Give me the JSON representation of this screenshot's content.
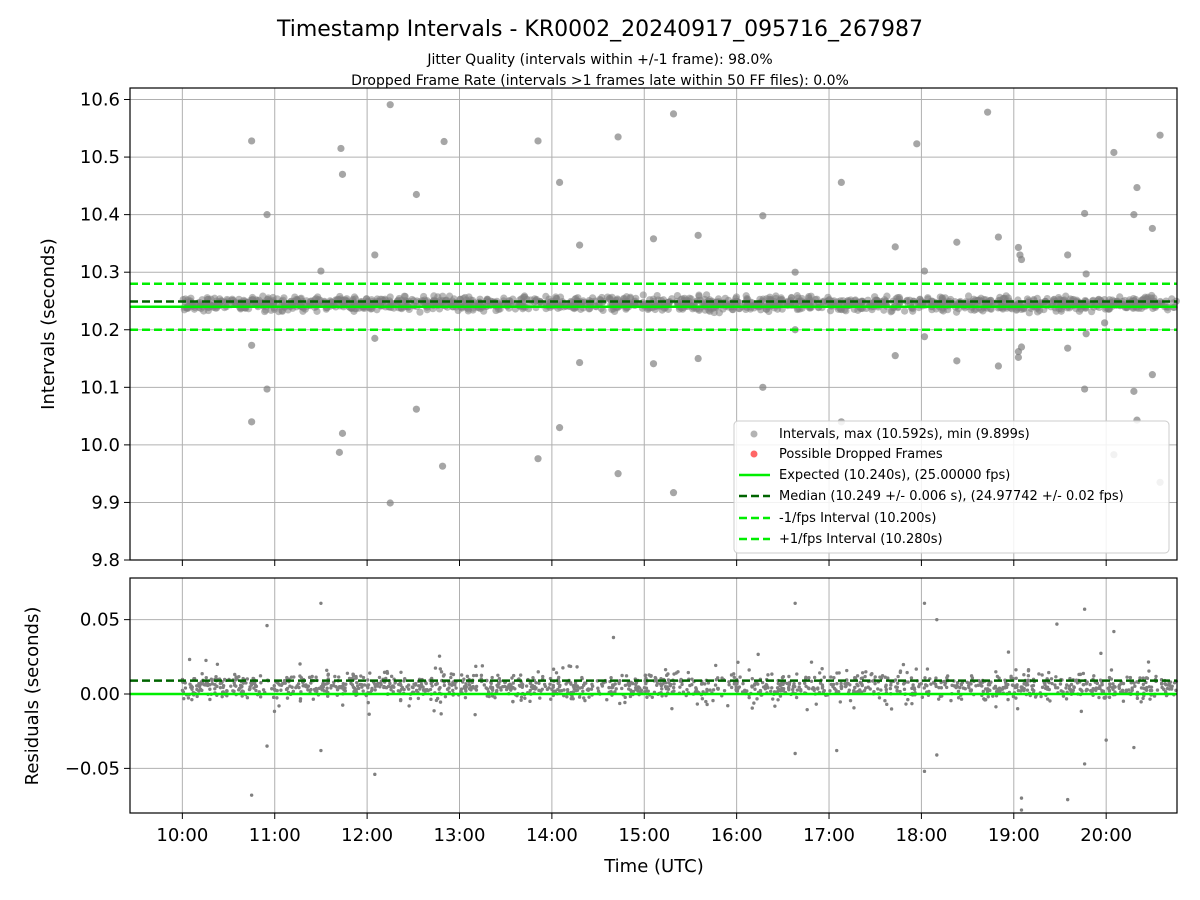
{
  "chart_data": [
    {
      "type": "scatter",
      "title": "Timestamp Intervals - KR0002_20240917_095716_267987",
      "subtitle_lines": [
        "Jitter Quality (intervals within +/-1 frame): 98.0%",
        "Dropped Frame Rate (intervals >1 frames late within 50 FF files): 0.0%"
      ],
      "ylabel": "Intervals (seconds)",
      "ylim": [
        9.8,
        10.62
      ],
      "yticks": [
        9.8,
        9.9,
        10.0,
        10.1,
        10.2,
        10.3,
        10.4,
        10.5,
        10.6
      ],
      "ytick_labels": [
        "9.8",
        "9.9",
        "10.0",
        "10.1",
        "10.2",
        "10.3",
        "10.4",
        "10.5",
        "10.6"
      ],
      "grid": true,
      "legend_position": "lower-right",
      "legend": [
        "Intervals, max (10.592s), min (9.899s)",
        "Possible Dropped Frames",
        "Expected (10.240s), (25.00000 fps)",
        "Median (10.249 +/- 0.006 s), (24.97742 +/- 0.02 fps)",
        "-1/fps Interval (10.200s)",
        "+1/fps Interval (10.280s)"
      ],
      "reference_lines": {
        "expected": 10.24,
        "median": 10.249,
        "minus_one_fps": 10.2,
        "plus_one_fps": 10.28
      },
      "baseline_band": {
        "center": 10.245,
        "spread": 0.018
      },
      "outliers": [
        {
          "x": "10:45",
          "y": 10.528
        },
        {
          "x": "10:45",
          "y": 10.173
        },
        {
          "x": "10:45",
          "y": 10.04
        },
        {
          "x": "10:55",
          "y": 10.4
        },
        {
          "x": "10:55",
          "y": 10.097
        },
        {
          "x": "11:30",
          "y": 10.302
        },
        {
          "x": "11:43",
          "y": 10.515
        },
        {
          "x": "11:44",
          "y": 10.47
        },
        {
          "x": "11:44",
          "y": 10.02
        },
        {
          "x": "11:42",
          "y": 9.987
        },
        {
          "x": "12:05",
          "y": 10.33
        },
        {
          "x": "12:05",
          "y": 10.185
        },
        {
          "x": "12:15",
          "y": 10.591
        },
        {
          "x": "12:15",
          "y": 9.899
        },
        {
          "x": "12:32",
          "y": 10.435
        },
        {
          "x": "12:32",
          "y": 10.062
        },
        {
          "x": "12:50",
          "y": 10.527
        },
        {
          "x": "12:49",
          "y": 9.963
        },
        {
          "x": "13:51",
          "y": 10.528
        },
        {
          "x": "13:51",
          "y": 9.976
        },
        {
          "x": "14:05",
          "y": 10.456
        },
        {
          "x": "14:05",
          "y": 10.03
        },
        {
          "x": "14:18",
          "y": 10.347
        },
        {
          "x": "14:18",
          "y": 10.143
        },
        {
          "x": "14:43",
          "y": 10.535
        },
        {
          "x": "14:43",
          "y": 9.95
        },
        {
          "x": "15:06",
          "y": 10.358
        },
        {
          "x": "15:06",
          "y": 10.141
        },
        {
          "x": "15:19",
          "y": 10.575
        },
        {
          "x": "15:19",
          "y": 9.917
        },
        {
          "x": "15:35",
          "y": 10.364
        },
        {
          "x": "15:35",
          "y": 10.15
        },
        {
          "x": "16:17",
          "y": 10.398
        },
        {
          "x": "16:17",
          "y": 10.1
        },
        {
          "x": "16:38",
          "y": 10.3
        },
        {
          "x": "16:38",
          "y": 10.2
        },
        {
          "x": "17:08",
          "y": 10.456
        },
        {
          "x": "17:08",
          "y": 10.04
        },
        {
          "x": "17:43",
          "y": 10.344
        },
        {
          "x": "17:43",
          "y": 10.155
        },
        {
          "x": "17:57",
          "y": 10.523
        },
        {
          "x": "18:02",
          "y": 10.302
        },
        {
          "x": "18:02",
          "y": 10.188
        },
        {
          "x": "18:23",
          "y": 10.352
        },
        {
          "x": "18:23",
          "y": 10.146
        },
        {
          "x": "18:43",
          "y": 10.578
        },
        {
          "x": "18:50",
          "y": 10.361
        },
        {
          "x": "18:50",
          "y": 10.137
        },
        {
          "x": "19:03",
          "y": 10.343
        },
        {
          "x": "19:04",
          "y": 10.33
        },
        {
          "x": "19:05",
          "y": 10.322
        },
        {
          "x": "19:03",
          "y": 10.162
        },
        {
          "x": "19:05",
          "y": 10.17
        },
        {
          "x": "19:03",
          "y": 10.152
        },
        {
          "x": "19:35",
          "y": 10.33
        },
        {
          "x": "19:35",
          "y": 10.168
        },
        {
          "x": "19:46",
          "y": 10.402
        },
        {
          "x": "19:47",
          "y": 10.297
        },
        {
          "x": "19:46",
          "y": 10.097
        },
        {
          "x": "19:47",
          "y": 10.193
        },
        {
          "x": "19:59",
          "y": 10.212
        },
        {
          "x": "20:05",
          "y": 10.508
        },
        {
          "x": "20:05",
          "y": 9.983
        },
        {
          "x": "20:18",
          "y": 10.4
        },
        {
          "x": "20:20",
          "y": 10.447
        },
        {
          "x": "20:18",
          "y": 10.093
        },
        {
          "x": "20:20",
          "y": 10.043
        },
        {
          "x": "20:30",
          "y": 10.376
        },
        {
          "x": "20:30",
          "y": 10.122
        },
        {
          "x": "20:35",
          "y": 10.538
        },
        {
          "x": "20:35",
          "y": 9.935
        }
      ]
    },
    {
      "type": "scatter",
      "ylabel": "Residuals (seconds)",
      "xlabel": "Time (UTC)",
      "ylim": [
        -0.08,
        0.078
      ],
      "yticks": [
        -0.05,
        0.0,
        0.05
      ],
      "ytick_labels": [
        "−0.05",
        "0.00",
        "0.05"
      ],
      "xlim": [
        "09:26",
        "20:46"
      ],
      "xticks": [
        "10:00",
        "11:00",
        "12:00",
        "13:00",
        "14:00",
        "15:00",
        "16:00",
        "17:00",
        "18:00",
        "19:00",
        "20:00"
      ],
      "grid": true,
      "reference_lines": {
        "zero": 0.0,
        "median_offset": 0.009
      },
      "baseline_band": {
        "center": 0.005,
        "spread": 0.012
      },
      "outliers": [
        {
          "x": "10:45",
          "y": -0.068
        },
        {
          "x": "10:55",
          "y": 0.046
        },
        {
          "x": "10:55",
          "y": -0.035
        },
        {
          "x": "11:30",
          "y": 0.061
        },
        {
          "x": "11:30",
          "y": -0.038
        },
        {
          "x": "12:05",
          "y": -0.054
        },
        {
          "x": "14:40",
          "y": 0.038
        },
        {
          "x": "16:38",
          "y": 0.061
        },
        {
          "x": "16:38",
          "y": -0.04
        },
        {
          "x": "17:05",
          "y": -0.038
        },
        {
          "x": "18:02",
          "y": 0.061
        },
        {
          "x": "18:02",
          "y": -0.052
        },
        {
          "x": "18:10",
          "y": 0.05
        },
        {
          "x": "18:10",
          "y": -0.041
        },
        {
          "x": "19:05",
          "y": -0.078
        },
        {
          "x": "19:05",
          "y": -0.07
        },
        {
          "x": "19:28",
          "y": 0.047
        },
        {
          "x": "19:35",
          "y": -0.071
        },
        {
          "x": "19:46",
          "y": 0.057
        },
        {
          "x": "19:46",
          "y": -0.047
        },
        {
          "x": "20:05",
          "y": 0.042
        },
        {
          "x": "20:00",
          "y": -0.031
        },
        {
          "x": "20:18",
          "y": -0.036
        }
      ]
    }
  ],
  "colors": {
    "scatter": "#808080",
    "dropped": "#ff0000",
    "expected": "#00ee00",
    "median": "#006400",
    "interval": "#00ee00",
    "grid": "#b0b0b0"
  }
}
